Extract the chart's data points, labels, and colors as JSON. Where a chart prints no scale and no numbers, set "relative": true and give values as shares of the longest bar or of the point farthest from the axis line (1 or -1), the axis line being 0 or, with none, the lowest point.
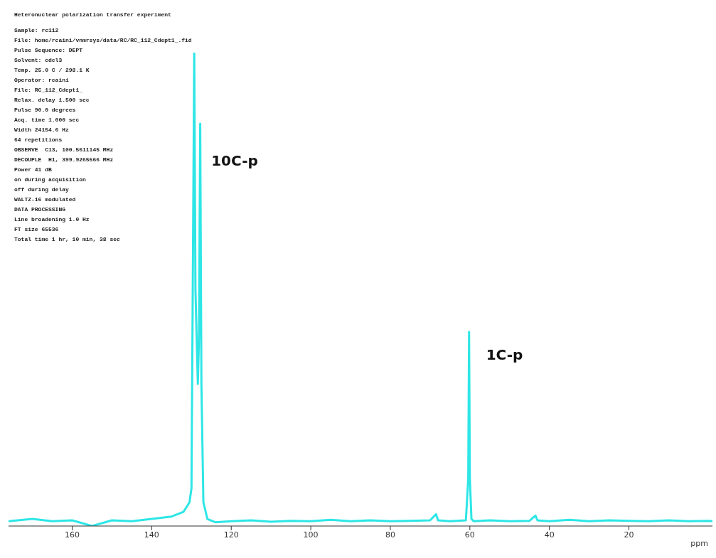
{
  "chart_data": {
    "type": "line",
    "title": "Heteronuclear polarization transfer experiment",
    "relative": true,
    "xlabel": "ppm",
    "x": [
      176,
      170,
      165,
      160,
      155,
      150,
      145,
      140,
      135,
      132,
      130.5,
      130,
      129.6,
      129.3,
      129.0,
      128.4,
      128.1,
      127.8,
      127.5,
      127.0,
      126,
      124,
      120,
      115,
      110,
      105,
      100,
      95,
      90,
      85,
      80,
      75,
      70,
      68.5,
      68,
      65,
      61,
      60.4,
      60.2,
      60.0,
      59.6,
      59,
      55,
      50,
      45,
      43.5,
      43,
      40,
      35,
      30,
      25,
      20,
      15,
      10,
      5,
      0,
      -1
    ],
    "series": [
      {
        "color": "#2ee6e6",
        "values": [
          0.01,
          0.015,
          0.01,
          0.012,
          0,
          0.012,
          0.01,
          0.015,
          0.02,
          0.03,
          0.05,
          0.08,
          0.6,
          1,
          0.5,
          0.3,
          0.4,
          0.85,
          0.3,
          0.05,
          0.015,
          0.008,
          0.01,
          0.012,
          0.009,
          0.011,
          0.01,
          0.013,
          0.01,
          0.012,
          0.01,
          0.011,
          0.012,
          0.025,
          0.012,
          0.01,
          0.012,
          0.1,
          0.41,
          0.1,
          0.015,
          0.01,
          0.012,
          0.01,
          0.011,
          0.022,
          0.012,
          0.01,
          0.013,
          0.01,
          0.012,
          0.011,
          0.01,
          0.012,
          0.01,
          0.011,
          0.01
        ]
      }
    ],
    "xlim": [
      176,
      -1
    ],
    "xticks": [
      160,
      140,
      120,
      100,
      80,
      60,
      40,
      20
    ],
    "marker": "none",
    "line_style": "solid",
    "tick_labels": "x",
    "annotations": [
      "Sample: rc112",
      "File: home/rcaini/vnmrsys/data/RC/RC_112_Cdept1_.fid",
      "Pulse Sequence: DEPT",
      "Solvent: cdcl3",
      "Temp. 25.0 C / 298.1 K",
      "Operator: rcaini",
      "File: RC_112_Cdept1_",
      "Relax. delay 1.500 sec",
      "Pulse 90.0 degrees",
      "Acq. time 1.000 sec",
      "Width 24154.6 Hz",
      "64 repetitions",
      "OBSERVE  C13, 100.5611145 MHz",
      "DECOUPLE  H1, 399.9265566 MHz",
      "Power 41 dB",
      "on during acquisition",
      "off during delay",
      "WALTZ-16 modulated",
      "DATA PROCESSING",
      "Line broadening 1.0 Hz",
      "FT size 65536",
      "Total time 1 hr, 10 min, 38 sec",
      {
        "text": "10C-p",
        "x": 129.3,
        "y": 0.77
      },
      {
        "text": "1C-p",
        "x": 60.2,
        "y": 0.36
      }
    ]
  }
}
